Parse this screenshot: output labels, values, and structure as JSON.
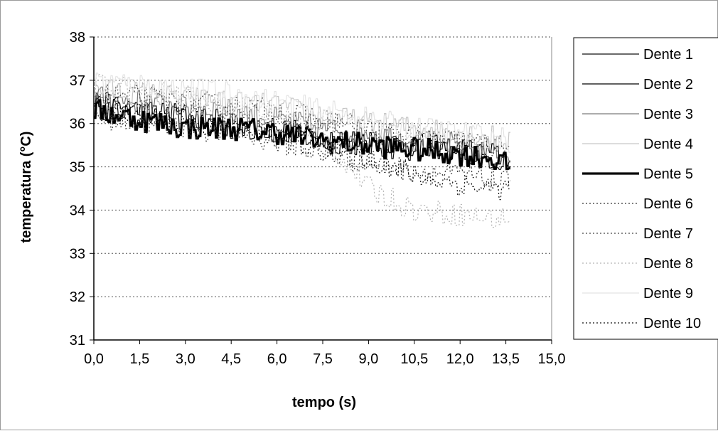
{
  "chart_data": {
    "type": "line",
    "title": "",
    "xlabel": "tempo (s)",
    "ylabel": "temperatura (°C)",
    "xlim": [
      0,
      15
    ],
    "ylim": [
      31,
      38
    ],
    "x_ticks": [
      "0,0",
      "1,5",
      "3,0",
      "4,5",
      "6,0",
      "7,5",
      "9,0",
      "10,5",
      "12,0",
      "13,5",
      "15,0"
    ],
    "y_ticks": [
      "31",
      "32",
      "33",
      "34",
      "35",
      "36",
      "37",
      "38"
    ],
    "grid": "horizontal dotted",
    "legend": "right",
    "series": [
      {
        "name": "Dente 1",
        "style": "solid-thin",
        "color": "#111111",
        "points": [
          [
            0,
            36.4
          ],
          [
            1.5,
            36.2
          ],
          [
            3,
            36.1
          ],
          [
            4.5,
            35.9
          ],
          [
            6,
            35.8
          ],
          [
            7.5,
            35.6
          ],
          [
            9,
            35.5
          ],
          [
            10.5,
            35.4
          ],
          [
            12,
            35.3
          ],
          [
            13,
            35.2
          ],
          [
            13.6,
            35.1
          ]
        ]
      },
      {
        "name": "Dente 2",
        "style": "solid-thin",
        "color": "#000000",
        "points": [
          [
            0,
            36.5
          ],
          [
            1.5,
            36.3
          ],
          [
            3,
            36.2
          ],
          [
            4.5,
            36.0
          ],
          [
            6,
            35.9
          ],
          [
            7.5,
            35.7
          ],
          [
            9,
            35.6
          ],
          [
            10.5,
            35.5
          ],
          [
            12,
            35.4
          ],
          [
            13,
            35.3
          ],
          [
            13.6,
            35.2
          ]
        ]
      },
      {
        "name": "Dente 3",
        "style": "solid-thin",
        "color": "#7a7a7a",
        "points": [
          [
            0,
            36.6
          ],
          [
            1.5,
            36.5
          ],
          [
            3,
            36.4
          ],
          [
            4.5,
            36.3
          ],
          [
            6,
            36.1
          ],
          [
            7.5,
            35.9
          ],
          [
            9,
            35.8
          ],
          [
            10.5,
            35.6
          ],
          [
            12,
            35.5
          ],
          [
            13,
            35.4
          ],
          [
            13.6,
            35.3
          ]
        ]
      },
      {
        "name": "Dente 4",
        "style": "solid-thin",
        "color": "#c6c6c6",
        "points": [
          [
            0,
            36.8
          ],
          [
            1.5,
            36.7
          ],
          [
            3,
            36.6
          ],
          [
            4.5,
            36.5
          ],
          [
            6,
            36.4
          ],
          [
            7.5,
            36.2
          ],
          [
            9,
            36.0
          ],
          [
            10.5,
            35.9
          ],
          [
            12,
            35.8
          ],
          [
            13,
            35.7
          ],
          [
            13.6,
            35.6
          ]
        ]
      },
      {
        "name": "Dente 5",
        "style": "solid-thick",
        "color": "#000000",
        "points": [
          [
            0,
            36.3
          ],
          [
            1.5,
            36.1
          ],
          [
            3,
            35.9
          ],
          [
            4.5,
            35.9
          ],
          [
            6,
            35.8
          ],
          [
            7.5,
            35.6
          ],
          [
            9,
            35.5
          ],
          [
            10.5,
            35.4
          ],
          [
            12,
            35.3
          ],
          [
            13,
            35.2
          ],
          [
            13.6,
            35.0
          ]
        ]
      },
      {
        "name": "Dente 6",
        "style": "dotted",
        "color": "#333333",
        "points": [
          [
            0,
            36.2
          ],
          [
            1.5,
            36.0
          ],
          [
            3,
            35.9
          ],
          [
            4.5,
            35.8
          ],
          [
            6,
            35.6
          ],
          [
            7.5,
            35.3
          ],
          [
            9,
            35.1
          ],
          [
            10.5,
            34.9
          ],
          [
            12,
            34.8
          ],
          [
            13,
            34.7
          ],
          [
            13.6,
            34.6
          ]
        ]
      },
      {
        "name": "Dente 7",
        "style": "dotted",
        "color": "#444444",
        "points": [
          [
            0,
            36.7
          ],
          [
            1.5,
            36.6
          ],
          [
            3,
            36.5
          ],
          [
            4.5,
            36.4
          ],
          [
            6,
            36.3
          ],
          [
            7.5,
            36.1
          ],
          [
            9,
            35.9
          ],
          [
            10.5,
            35.7
          ],
          [
            12,
            35.6
          ],
          [
            13,
            35.5
          ],
          [
            13.6,
            35.4
          ]
        ]
      },
      {
        "name": "Dente 8",
        "style": "dotted",
        "color": "#b5b5b5",
        "points": [
          [
            0,
            36.9
          ],
          [
            1.5,
            36.8
          ],
          [
            3,
            36.6
          ],
          [
            4.5,
            36.4
          ],
          [
            6,
            36.2
          ],
          [
            7.5,
            35.7
          ],
          [
            9,
            34.5
          ],
          [
            10.5,
            34.0
          ],
          [
            12,
            33.9
          ],
          [
            13,
            33.8
          ],
          [
            13.6,
            33.8
          ]
        ]
      },
      {
        "name": "Dente 9",
        "style": "solid-thin",
        "color": "#e4e4e4",
        "points": [
          [
            0,
            37.0
          ],
          [
            1.5,
            36.9
          ],
          [
            3,
            36.8
          ],
          [
            4.5,
            36.7
          ],
          [
            6,
            36.5
          ],
          [
            7.5,
            36.3
          ],
          [
            9,
            36.1
          ],
          [
            10.5,
            35.9
          ],
          [
            12,
            35.8
          ],
          [
            13,
            35.7
          ],
          [
            13.6,
            35.6
          ]
        ]
      },
      {
        "name": "Dente 10",
        "style": "dotted",
        "color": "#111111",
        "points": [
          [
            0,
            36.4
          ],
          [
            1.5,
            36.2
          ],
          [
            3,
            36.0
          ],
          [
            4.5,
            35.9
          ],
          [
            6,
            35.7
          ],
          [
            7.5,
            35.4
          ],
          [
            9,
            35.2
          ],
          [
            10.5,
            34.8
          ],
          [
            12,
            34.6
          ],
          [
            13,
            34.5
          ],
          [
            13.6,
            34.5
          ]
        ]
      }
    ]
  }
}
